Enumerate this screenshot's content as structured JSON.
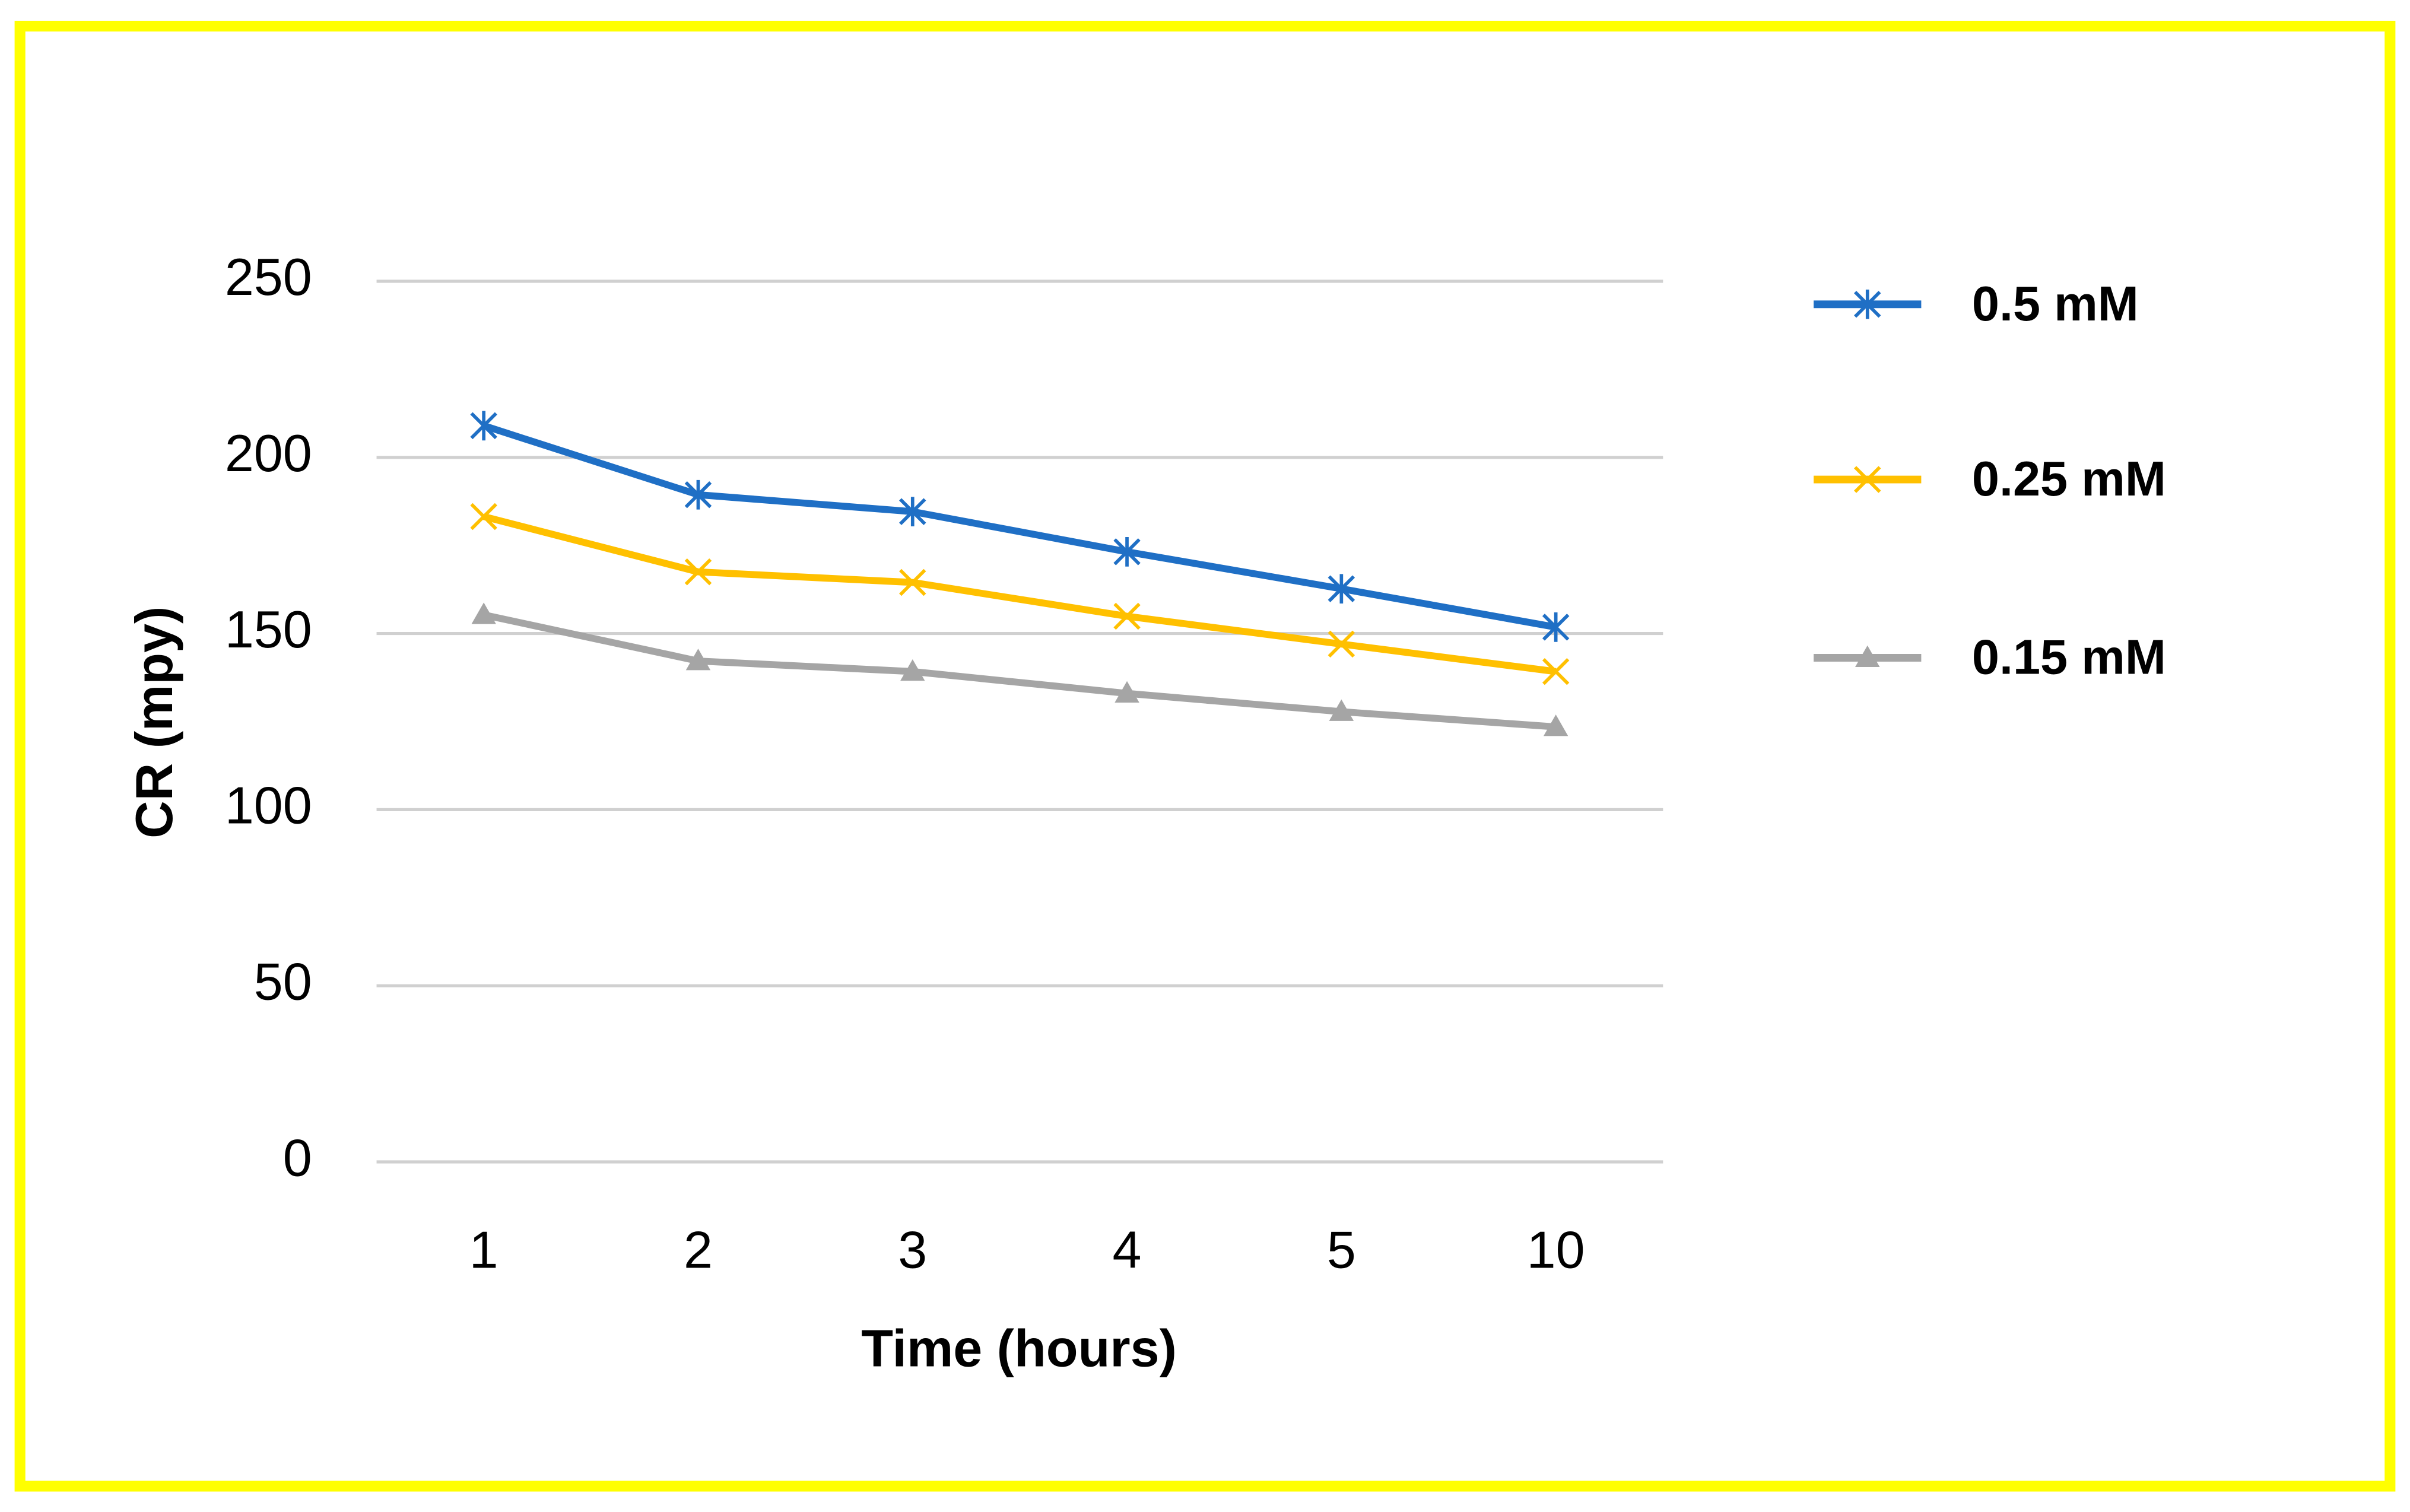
{
  "chart_data": {
    "type": "line",
    "x_label": "Time (hours)",
    "y_label": "CR (mpy)",
    "categories": [
      "1",
      "2",
      "3",
      "4",
      "5",
      "10"
    ],
    "series": [
      {
        "name": "0.5 mM",
        "color": "#1f6fc5",
        "marker": "star",
        "values": [
          209,
          189.4,
          184.6,
          173.2,
          162.7,
          151.8
        ]
      },
      {
        "name": "0.25 mM",
        "color": "#ffc000",
        "marker": "x",
        "values": [
          183.2,
          167.5,
          164.5,
          154.9,
          147,
          139.2
        ]
      },
      {
        "name": "0.15 mM",
        "color": "#a5a5a5",
        "marker": "triangle",
        "values": [
          155.3,
          142.2,
          139.2,
          133,
          127.8,
          123.5
        ]
      }
    ],
    "ylim": [
      0,
      250
    ],
    "yticks": [
      0,
      50,
      100,
      150,
      200,
      250
    ],
    "grid": true,
    "legend": "right"
  }
}
